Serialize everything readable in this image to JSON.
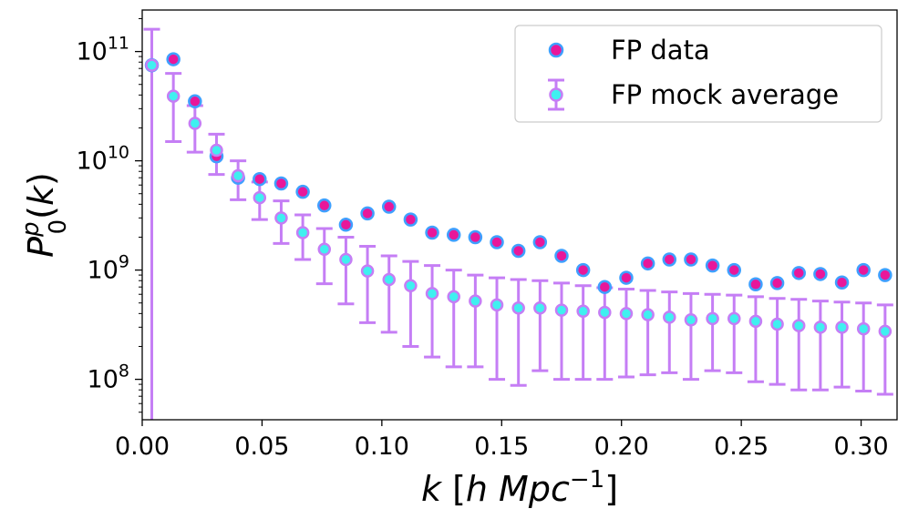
{
  "chart_data": {
    "type": "scatter",
    "title": "",
    "xlabel": "k [h Mpc^-1]",
    "ylabel": "P0p(k)",
    "xlim": [
      0.0,
      0.315
    ],
    "ylim_log10": [
      7.63,
      11.38
    ],
    "yscale": "log",
    "x_ticks": [
      {
        "value": 0.0,
        "label": "0.00"
      },
      {
        "value": 0.05,
        "label": "0.05"
      },
      {
        "value": 0.1,
        "label": "0.10"
      },
      {
        "value": 0.15,
        "label": "0.15"
      },
      {
        "value": 0.2,
        "label": "0.20"
      },
      {
        "value": 0.25,
        "label": "0.25"
      },
      {
        "value": 0.3,
        "label": "0.30"
      }
    ],
    "y_ticks": [
      {
        "exp": 8,
        "base": "10",
        "sup": "8"
      },
      {
        "exp": 9,
        "base": "10",
        "sup": "9"
      },
      {
        "exp": 10,
        "base": "10",
        "sup": "10"
      },
      {
        "exp": 11,
        "base": "10",
        "sup": "11"
      }
    ],
    "legend": {
      "position": "top-right",
      "entries": [
        "FP data",
        "FP mock average"
      ]
    },
    "colors": {
      "data_fill": "#e8179a",
      "data_edge": "#3fa0ff",
      "mock_fill": "#3ff0f0",
      "mock_edge": "#c57ef5",
      "errorbar": "#c57ef5"
    },
    "x": [
      0.004,
      0.013,
      0.022,
      0.031,
      0.04,
      0.049,
      0.058,
      0.067,
      0.076,
      0.085,
      0.094,
      0.103,
      0.112,
      0.121,
      0.13,
      0.139,
      0.148,
      0.157,
      0.166,
      0.175,
      0.184,
      0.193,
      0.202,
      0.211,
      0.22,
      0.229,
      0.238,
      0.247,
      0.256,
      0.265,
      0.274,
      0.283,
      0.292,
      0.301,
      0.31
    ],
    "series": [
      {
        "name": "FP data",
        "values": [
          75000000000.0,
          85000000000.0,
          35000000000.0,
          11000000000.0,
          7000000000.0,
          6800000000.0,
          6200000000.0,
          5200000000.0,
          3900000000.0,
          2600000000.0,
          3300000000.0,
          3800000000.0,
          2900000000.0,
          2200000000.0,
          2100000000.0,
          2000000000.0,
          1800000000.0,
          1500000000.0,
          1800000000.0,
          1350000000.0,
          1000000000.0,
          700000000.0,
          850000000.0,
          1150000000.0,
          1250000000.0,
          1250000000.0,
          1100000000.0,
          1000000000.0,
          740000000.0,
          760000000.0,
          940000000.0,
          920000000.0,
          770000000.0,
          1000000000.0,
          900000000.0
        ]
      },
      {
        "name": "FP mock average",
        "values": [
          75000000000.0,
          39000000000.0,
          22000000000.0,
          12500000000.0,
          7300000000.0,
          4600000000.0,
          3000000000.0,
          2200000000.0,
          1550000000.0,
          1250000000.0,
          980000000.0,
          820000000.0,
          720000000.0,
          610000000.0,
          570000000.0,
          520000000.0,
          480000000.0,
          450000000.0,
          450000000.0,
          430000000.0,
          420000000.0,
          410000000.0,
          400000000.0,
          390000000.0,
          370000000.0,
          350000000.0,
          360000000.0,
          360000000.0,
          340000000.0,
          320000000.0,
          310000000.0,
          300000000.0,
          300000000.0,
          290000000.0,
          275000000.0
        ],
        "err_low": [
          40000000.0,
          15000000000.0,
          12000000000.0,
          7500000000.0,
          4400000000.0,
          2900000000.0,
          1750000000.0,
          1250000000.0,
          750000000.0,
          490000000.0,
          330000000.0,
          270000000.0,
          200000000.0,
          160000000.0,
          130000000.0,
          130000000.0,
          100000000.0,
          88000000.0,
          120000000.0,
          100000000.0,
          100000000.0,
          100000000.0,
          105000000.0,
          110000000.0,
          115000000.0,
          100000000.0,
          120000000.0,
          115000000.0,
          95000000.0,
          90000000.0,
          80000000.0,
          80000000.0,
          85000000.0,
          78000000.0,
          73000000.0
        ],
        "err_high": [
          160000000000.0,
          63000000000.0,
          32000000000.0,
          17500000000.0,
          10000000000.0,
          6400000000.0,
          4300000000.0,
          3200000000.0,
          2400000000.0,
          2000000000.0,
          1650000000.0,
          1350000000.0,
          1200000000.0,
          1100000000.0,
          1000000000.0,
          900000000.0,
          850000000.0,
          820000000.0,
          800000000.0,
          760000000.0,
          720000000.0,
          690000000.0,
          670000000.0,
          650000000.0,
          630000000.0,
          610000000.0,
          600000000.0,
          590000000.0,
          570000000.0,
          550000000.0,
          540000000.0,
          520000000.0,
          510000000.0,
          500000000.0,
          480000000.0
        ]
      }
    ]
  }
}
